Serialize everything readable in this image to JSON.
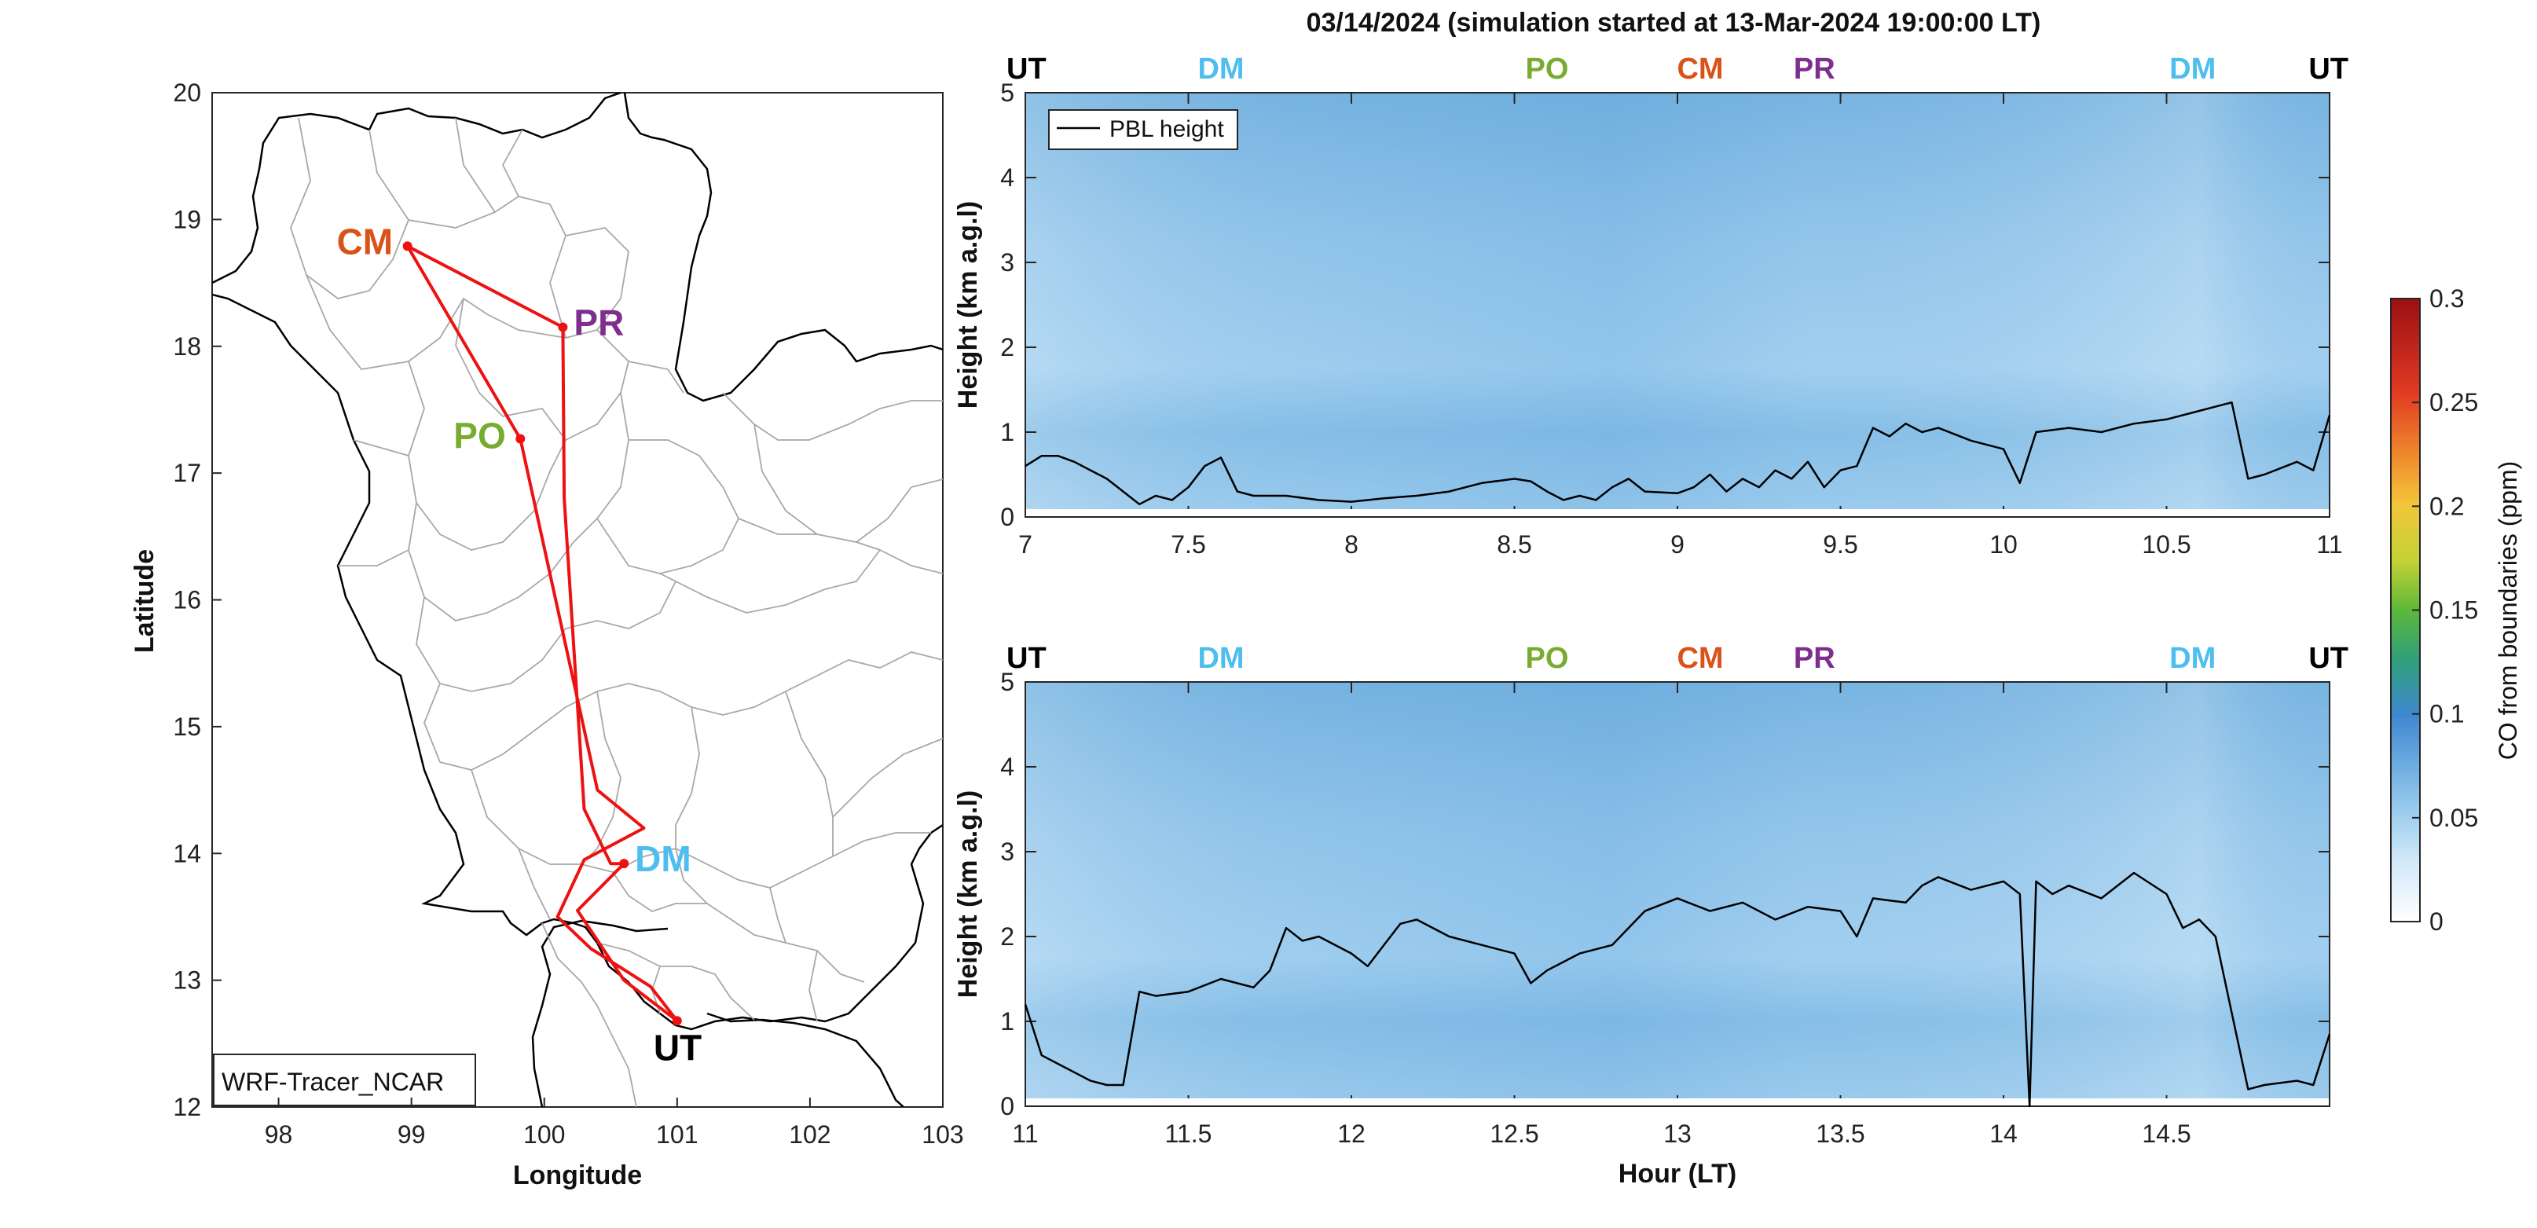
{
  "figure": {
    "title": "03/14/2024 (simulation started at 13-Mar-2024 19:00:00 LT)"
  },
  "map": {
    "xlabel": "Longitude",
    "ylabel": "Latitude",
    "xticks": [
      "98",
      "99",
      "100",
      "101",
      "102",
      "103"
    ],
    "yticks": [
      "12",
      "13",
      "14",
      "15",
      "16",
      "17",
      "18",
      "19",
      "20"
    ],
    "xlim": [
      97.5,
      103
    ],
    "ylim": [
      12,
      20
    ],
    "legend_box_label": "WRF-Tracer_NCAR",
    "track_color": "#ee1111",
    "sites": [
      {
        "code": "CM",
        "lon": 98.97,
        "lat": 18.79,
        "color": "#d95319"
      },
      {
        "code": "PR",
        "lon": 100.14,
        "lat": 18.15,
        "color": "#7e2f8e"
      },
      {
        "code": "PO",
        "lon": 99.82,
        "lat": 17.27,
        "color": "#77ac30"
      },
      {
        "code": "DM",
        "lon": 100.6,
        "lat": 13.92,
        "color": "#4dbeee"
      },
      {
        "code": "UT",
        "lon": 101.0,
        "lat": 12.68,
        "color": "#000000"
      }
    ],
    "track": [
      [
        101.0,
        12.68
      ],
      [
        100.6,
        13.0
      ],
      [
        100.25,
        13.55
      ],
      [
        100.6,
        13.92
      ],
      [
        100.5,
        13.92
      ],
      [
        100.3,
        14.35
      ],
      [
        100.15,
        16.8
      ],
      [
        100.14,
        18.15
      ],
      [
        98.97,
        18.79
      ],
      [
        99.82,
        17.27
      ],
      [
        100.4,
        14.5
      ],
      [
        100.75,
        14.2
      ],
      [
        100.3,
        13.95
      ],
      [
        100.1,
        13.5
      ],
      [
        100.35,
        13.25
      ],
      [
        100.8,
        12.95
      ],
      [
        101.0,
        12.68
      ]
    ]
  },
  "panel_labels": {
    "top": [
      "UT",
      "DM",
      "PO",
      "CM",
      "PR",
      "DM",
      "UT"
    ],
    "bottom": [
      "UT",
      "DM",
      "PO",
      "CM",
      "PR",
      "DM",
      "UT"
    ],
    "colors": {
      "UT": "#000000",
      "DM": "#4dbeee",
      "PO": "#77ac30",
      "CM": "#d95319",
      "PR": "#7e2f8e"
    }
  },
  "colorbar": {
    "label": "CO from boundaries (ppm)",
    "ticks": [
      "0",
      "0.05",
      "0.1",
      "0.15",
      "0.2",
      "0.25",
      "0.3"
    ],
    "range": [
      0,
      0.3
    ]
  },
  "chart_data": [
    {
      "type": "line",
      "title": "03/14/2024 (simulation started at 13-Mar-2024 19:00:00 LT)",
      "xlabel": "",
      "ylabel": "Height (km a.g.l)",
      "xlim": [
        7,
        11
      ],
      "ylim": [
        0,
        5
      ],
      "xticks": [
        "7",
        "7.5",
        "8",
        "8.5",
        "9",
        "9.5",
        "10",
        "10.5",
        "11"
      ],
      "yticks": [
        "0",
        "1",
        "2",
        "3",
        "4",
        "5"
      ],
      "legend": "top-left",
      "series": [
        {
          "name": "PBL height",
          "x": [
            7.0,
            7.05,
            7.1,
            7.15,
            7.2,
            7.25,
            7.3,
            7.35,
            7.4,
            7.45,
            7.5,
            7.55,
            7.6,
            7.65,
            7.7,
            7.8,
            7.9,
            8.0,
            8.1,
            8.2,
            8.3,
            8.4,
            8.5,
            8.55,
            8.6,
            8.65,
            8.7,
            8.75,
            8.8,
            8.85,
            8.9,
            9.0,
            9.05,
            9.1,
            9.15,
            9.2,
            9.25,
            9.3,
            9.35,
            9.4,
            9.45,
            9.5,
            9.55,
            9.6,
            9.65,
            9.7,
            9.75,
            9.8,
            9.9,
            10.0,
            10.05,
            10.1,
            10.2,
            10.3,
            10.4,
            10.5,
            10.6,
            10.65,
            10.7,
            10.75,
            10.8,
            10.9,
            10.95,
            11.0
          ],
          "values": [
            0.6,
            0.72,
            0.72,
            0.65,
            0.55,
            0.45,
            0.3,
            0.15,
            0.25,
            0.2,
            0.35,
            0.6,
            0.7,
            0.3,
            0.25,
            0.25,
            0.2,
            0.18,
            0.22,
            0.25,
            0.3,
            0.4,
            0.45,
            0.42,
            0.3,
            0.2,
            0.25,
            0.2,
            0.35,
            0.45,
            0.3,
            0.28,
            0.35,
            0.5,
            0.3,
            0.45,
            0.35,
            0.55,
            0.45,
            0.65,
            0.35,
            0.55,
            0.6,
            1.05,
            0.95,
            1.1,
            1.0,
            1.05,
            0.9,
            0.8,
            0.4,
            1.0,
            1.05,
            1.0,
            1.1,
            1.15,
            1.25,
            1.3,
            1.35,
            0.45,
            0.5,
            0.65,
            0.55,
            1.2
          ]
        }
      ]
    },
    {
      "type": "line",
      "title": "",
      "xlabel": "Hour (LT)",
      "ylabel": "Height (km a.g.l)",
      "xlim": [
        11,
        15
      ],
      "ylim": [
        0,
        5
      ],
      "xticks": [
        "11",
        "11.5",
        "12",
        "12.5",
        "13",
        "13.5",
        "14",
        "14.5"
      ],
      "yticks": [
        "0",
        "1",
        "2",
        "3",
        "4",
        "5"
      ],
      "series": [
        {
          "name": "PBL height",
          "x": [
            11.0,
            11.05,
            11.1,
            11.15,
            11.2,
            11.25,
            11.3,
            11.35,
            11.4,
            11.5,
            11.6,
            11.7,
            11.75,
            11.8,
            11.85,
            11.9,
            12.0,
            12.05,
            12.1,
            12.15,
            12.2,
            12.3,
            12.4,
            12.5,
            12.55,
            12.6,
            12.7,
            12.8,
            12.9,
            13.0,
            13.1,
            13.2,
            13.3,
            13.4,
            13.5,
            13.55,
            13.6,
            13.7,
            13.75,
            13.8,
            13.9,
            14.0,
            14.05,
            14.08,
            14.1,
            14.15,
            14.2,
            14.3,
            14.4,
            14.5,
            14.55,
            14.6,
            14.65,
            14.7,
            14.75,
            14.8,
            14.9,
            14.95,
            15.0
          ],
          "values": [
            1.2,
            0.6,
            0.5,
            0.4,
            0.3,
            0.25,
            0.25,
            1.35,
            1.3,
            1.35,
            1.5,
            1.4,
            1.6,
            2.1,
            1.95,
            2.0,
            1.8,
            1.65,
            1.9,
            2.15,
            2.2,
            2.0,
            1.9,
            1.8,
            1.45,
            1.6,
            1.8,
            1.9,
            2.3,
            2.45,
            2.3,
            2.4,
            2.2,
            2.35,
            2.3,
            2.0,
            2.45,
            2.4,
            2.6,
            2.7,
            2.55,
            2.65,
            2.5,
            0.0,
            2.65,
            2.5,
            2.6,
            2.45,
            2.75,
            2.5,
            2.1,
            2.2,
            2.0,
            1.1,
            0.2,
            0.25,
            0.3,
            0.25,
            0.85
          ]
        }
      ]
    }
  ]
}
